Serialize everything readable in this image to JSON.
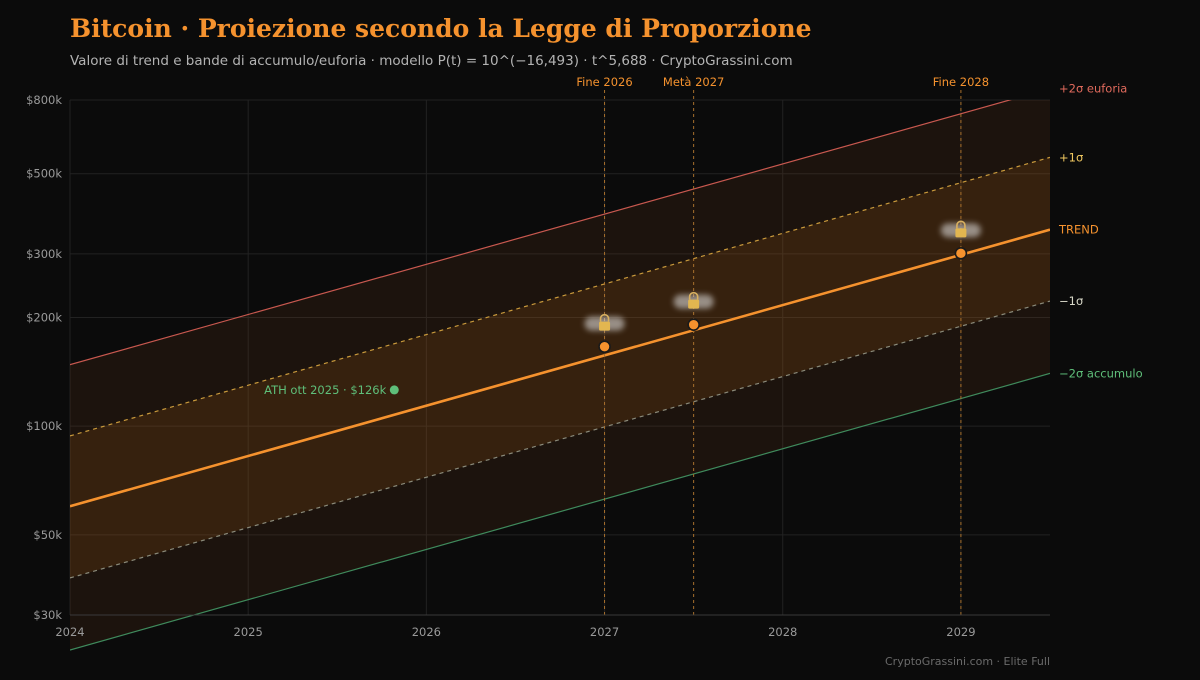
{
  "header": {
    "title": "Bitcoin · Proiezione secondo la Legge di Proporzione",
    "subtitle": "Valore di trend e bande di accumulo/euforia · modello P(t) = 10^(−16,493) · t^5,688 · CryptoGrassini.com"
  },
  "footer": {
    "text": "CryptoGrassini.com · Elite Full"
  },
  "colors": {
    "background": "#0b0b0b",
    "trend": "#f5922e",
    "euforia": "#c8584f",
    "sigma_plus": "#c99a3c",
    "sigma_minus": "#8a8a7a",
    "accumulo": "#3f8a5c",
    "ath": "#5fbf7a",
    "grid": "#222222",
    "axis_text": "#9a9a9a"
  },
  "chart_data": {
    "type": "line",
    "title": "Bitcoin · Proiezione secondo la Legge di Proporzione",
    "xlabel": "",
    "ylabel": "",
    "x_range": [
      2024.0,
      2029.5
    ],
    "ylim": [
      30000,
      800000
    ],
    "y_scale": "log",
    "grid": true,
    "x_ticks": [
      {
        "value": 2024,
        "label": "2024"
      },
      {
        "value": 2025,
        "label": "2025"
      },
      {
        "value": 2026,
        "label": "2026"
      },
      {
        "value": 2027,
        "label": "2027"
      },
      {
        "value": 2028,
        "label": "2028"
      },
      {
        "value": 2029,
        "label": "2029"
      }
    ],
    "y_ticks": [
      {
        "value": 30000,
        "label": "$30k"
      },
      {
        "value": 50000,
        "label": "$50k"
      },
      {
        "value": 100000,
        "label": "$100k"
      },
      {
        "value": 200000,
        "label": "$200k"
      },
      {
        "value": 300000,
        "label": "$300k"
      },
      {
        "value": 500000,
        "label": "$500k"
      },
      {
        "value": 800000,
        "label": "$800k"
      }
    ],
    "series": [
      {
        "key": "euforia",
        "name": "+2σ euforia",
        "style": "solid",
        "x": [
          2024.0,
          2029.5
        ],
        "y": [
          148000,
          860000
        ]
      },
      {
        "key": "plus1",
        "name": "+1σ",
        "style": "dashed",
        "x": [
          2024.0,
          2029.5
        ],
        "y": [
          94000,
          555000
        ]
      },
      {
        "key": "trend",
        "name": "TREND",
        "style": "bold",
        "x": [
          2024.0,
          2029.5
        ],
        "y": [
          60000,
          350000
        ]
      },
      {
        "key": "minus1",
        "name": "−1σ",
        "style": "dashed",
        "x": [
          2024.0,
          2029.5
        ],
        "y": [
          38000,
          222000
        ]
      },
      {
        "key": "accumulo",
        "name": "−2σ accumulo",
        "style": "solid",
        "x": [
          2024.0,
          2029.5
        ],
        "y": [
          24000,
          140000
        ]
      }
    ],
    "milestones": [
      {
        "label": "Fine 2026",
        "x": 2027.0,
        "y": 166000
      },
      {
        "label": "Metà 2027",
        "x": 2027.5,
        "y": 191000
      },
      {
        "label": "Fine 2028",
        "x": 2029.0,
        "y": 301000
      }
    ],
    "annotations": [
      {
        "label": "ATH ott 2025 · $126k",
        "x": 2025.82,
        "y": 126000
      }
    ],
    "lock_icon": "lock-icon"
  }
}
